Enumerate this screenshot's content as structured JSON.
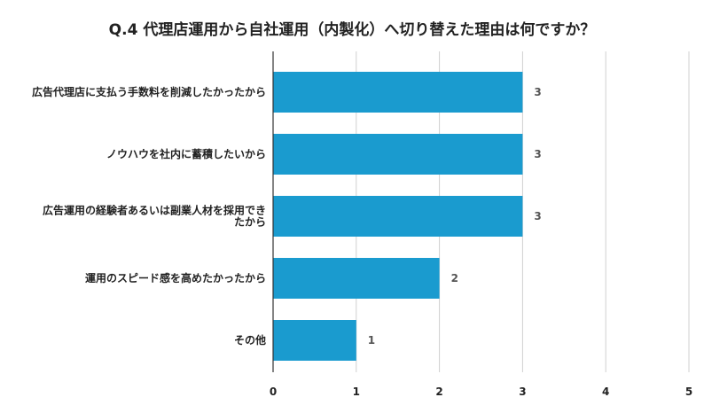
{
  "chart_data": {
    "type": "bar",
    "orientation": "horizontal",
    "title": "Q.4 代理店運用から自社運用（内製化）へ切り替えた理由は何ですか？",
    "categories": [
      [
        "広告代理店に支払う手数料を削減したかったから"
      ],
      [
        "ノウハウを社内に蓄積したいから"
      ],
      [
        "広告運用の経験者あるいは副業人材を採用でき",
        "たから"
      ],
      [
        "運用のスピード感を高めたかったから"
      ],
      [
        "その他"
      ]
    ],
    "values": [
      3,
      3,
      3,
      2,
      1
    ],
    "data_labels": [
      "3",
      "3",
      "3",
      "2",
      "1"
    ],
    "x_ticks": [
      "0",
      "1",
      "2",
      "3",
      "4",
      "5"
    ],
    "xlim": [
      0,
      5
    ],
    "grid": true,
    "legend": "none",
    "colors": {
      "bar": "#1a9bcf",
      "grid": "#d0d0d0",
      "axis": "#333333"
    }
  }
}
